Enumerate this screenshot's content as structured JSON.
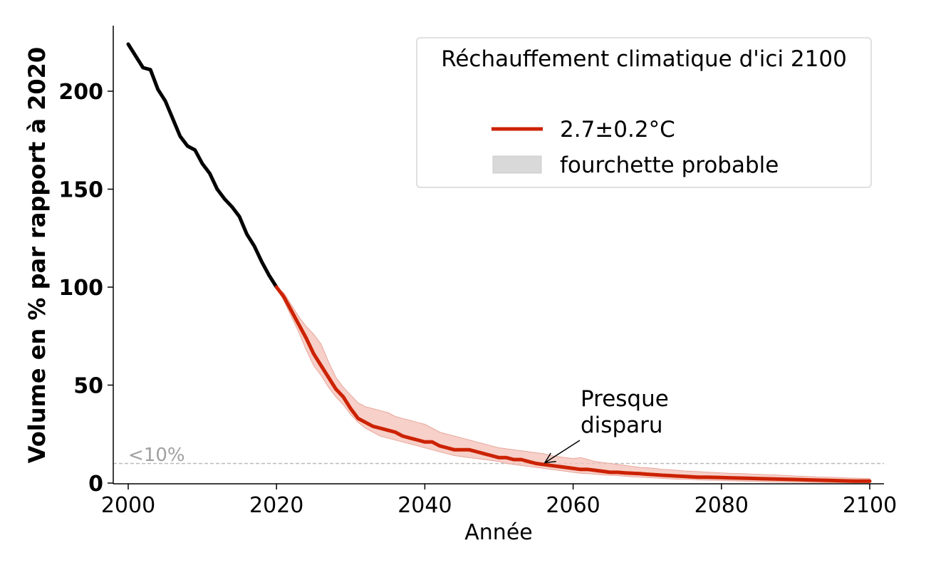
{
  "chart_data": {
    "type": "line",
    "xlabel": "Année",
    "ylabel": "Volume en % par rapport à 2020",
    "xlim": [
      1998,
      2102
    ],
    "ylim": [
      0,
      235
    ],
    "x_ticks": [
      2000,
      2020,
      2040,
      2060,
      2080,
      2100
    ],
    "y_ticks": [
      0,
      50,
      100,
      150,
      200
    ],
    "grid": false,
    "legend": {
      "placement": "top-right",
      "title": "Réchauffement climatique d'ici 2100",
      "entries": [
        {
          "label": "2.7±0.2°C",
          "kind": "line",
          "color": "#cc2200"
        },
        {
          "label": "fourchette probable",
          "kind": "patch",
          "color": "#d9d9d9"
        }
      ]
    },
    "threshold": {
      "y": 10,
      "label": "<10%",
      "color": "#bbbbbb"
    },
    "annotation": {
      "text_lines": [
        "Presque",
        "disparu"
      ],
      "point": [
        2056,
        10
      ]
    },
    "series": [
      {
        "role": "observed",
        "color": "#000000",
        "x": [
          2000,
          2001,
          2002,
          2003,
          2004,
          2005,
          2006,
          2007,
          2008,
          2009,
          2010,
          2011,
          2012,
          2013,
          2014,
          2015,
          2016,
          2017,
          2018,
          2019,
          2020
        ],
        "y": [
          224,
          218,
          212,
          211,
          201,
          195,
          186,
          177,
          172,
          170,
          163,
          158,
          150,
          145,
          141,
          136,
          127,
          121,
          113,
          106,
          100
        ]
      },
      {
        "role": "projection",
        "name": "2.7±0.2°C",
        "color": "#cc2200",
        "band_color": "#f4c4bc",
        "x": [
          2020,
          2021,
          2022,
          2023,
          2024,
          2025,
          2026,
          2027,
          2028,
          2029,
          2030,
          2031,
          2032,
          2033,
          2034,
          2035,
          2036,
          2037,
          2038,
          2039,
          2040,
          2041,
          2042,
          2043,
          2044,
          2045,
          2046,
          2047,
          2048,
          2049,
          2050,
          2051,
          2052,
          2053,
          2054,
          2055,
          2056,
          2057,
          2058,
          2059,
          2060,
          2061,
          2062,
          2063,
          2064,
          2065,
          2066,
          2067,
          2068,
          2069,
          2070,
          2071,
          2072,
          2073,
          2074,
          2075,
          2076,
          2077,
          2078,
          2079,
          2080,
          2081,
          2082,
          2083,
          2084,
          2085,
          2086,
          2087,
          2088,
          2089,
          2090,
          2091,
          2092,
          2093,
          2094,
          2095,
          2096,
          2097,
          2098,
          2099,
          2100
        ],
        "y": [
          100,
          95,
          88,
          81,
          74,
          66,
          60,
          54,
          48,
          44,
          38,
          33,
          31,
          29,
          28,
          27,
          26,
          24,
          23,
          22,
          21,
          21,
          19,
          18,
          17,
          17,
          17,
          16,
          15,
          14,
          13,
          13,
          12,
          12,
          11,
          10,
          9.5,
          9,
          8.5,
          8,
          7.5,
          7,
          7,
          6.5,
          6,
          5.5,
          5.5,
          5.2,
          5,
          4.8,
          4.5,
          4.3,
          4,
          3.8,
          3.6,
          3.4,
          3.2,
          3,
          3,
          2.9,
          2.8,
          2.7,
          2.6,
          2.5,
          2.4,
          2.3,
          2.2,
          2.1,
          2,
          1.9,
          1.8,
          1.7,
          1.6,
          1.5,
          1.4,
          1.3,
          1.2,
          1.1,
          1,
          1,
          1
        ],
        "lower": [
          100,
          93,
          85,
          77,
          68,
          60,
          55,
          49,
          44,
          40,
          35,
          31,
          28,
          26,
          24,
          23,
          22,
          21,
          20,
          19,
          18,
          17,
          16,
          15,
          14,
          13.5,
          13,
          12.5,
          12,
          11.5,
          11,
          10,
          9.5,
          9,
          8.5,
          8,
          7.5,
          7,
          6.5,
          6,
          5.5,
          5,
          4.8,
          4.5,
          4.2,
          4,
          3.8,
          3.5,
          3.2,
          3,
          2.8,
          2.6,
          2.4,
          2.2,
          2,
          1.9,
          1.8,
          1.6,
          1.5,
          1.4,
          1.3,
          1.2,
          1.1,
          1,
          0.9,
          0.8,
          0.7,
          0.6,
          0.5,
          0.5,
          0.4,
          0.4,
          0.3,
          0.3,
          0.2,
          0.2,
          0.2,
          0.1,
          0.1,
          0.1,
          0.1
        ],
        "upper": [
          100,
          97,
          91,
          85,
          80,
          76,
          71,
          62,
          54,
          49,
          45,
          41,
          39,
          38,
          37,
          36,
          34,
          33,
          32,
          31,
          30,
          28,
          26,
          25,
          24,
          23,
          22,
          21,
          20,
          19,
          18,
          17.5,
          17,
          16.5,
          16,
          15.5,
          15,
          14,
          13.5,
          13,
          12.5,
          13,
          12,
          11,
          10.5,
          10,
          9.5,
          9,
          8.5,
          8,
          7.8,
          7.5,
          7,
          6.8,
          6.5,
          6.2,
          6,
          5.8,
          5.6,
          5.4,
          5.2,
          5,
          4.9,
          4.8,
          4.6,
          4.5,
          4.3,
          4.2,
          4,
          3.8,
          3.6,
          3.5,
          3.3,
          3.1,
          3,
          2.9,
          2.8,
          2.6,
          2.5,
          2.4,
          2.3
        ]
      }
    ]
  }
}
